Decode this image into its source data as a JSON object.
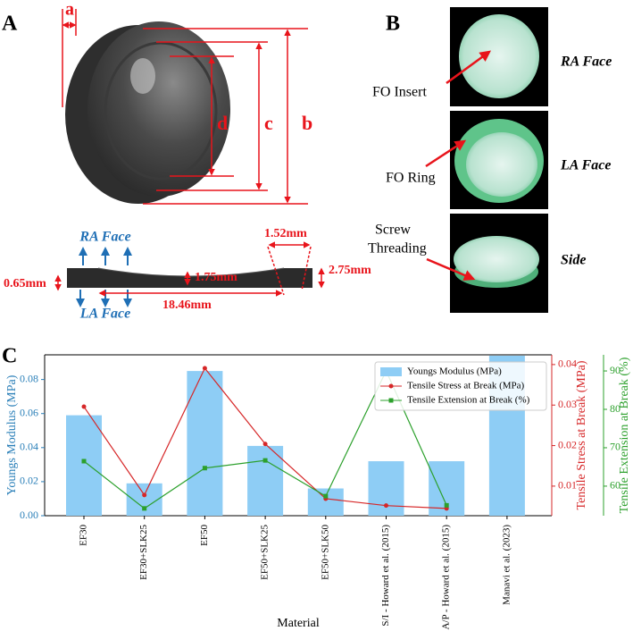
{
  "panels": {
    "a": {
      "label": "A",
      "dims": [
        "a",
        "b",
        "c",
        "d"
      ],
      "faces": [
        "RA Face",
        "LA Face"
      ],
      "measures": [
        "1.52mm",
        "2.75mm",
        "0.65mm",
        "1.75mm",
        "18.46mm"
      ]
    },
    "b": {
      "label": "B",
      "views": [
        "RA Face",
        "LA Face",
        "Side"
      ],
      "callouts": [
        "FO Insert",
        "FO Ring",
        "Screw",
        "Threading"
      ]
    },
    "c": {
      "label": "C"
    }
  },
  "chart_data": {
    "type": "bar",
    "categories": [
      "EF30",
      "EF30+SLK25",
      "EF50",
      "EF50+SLK25",
      "EF50+SLK50",
      "S/I - Howard et al. (2015)",
      "A/P - Howard et al. (2015)",
      "Manavi et al. (2023)"
    ],
    "x_label": "Material",
    "y_label": "Youngs Modulus (MPa)",
    "y2_label": "Tensile Stress at Break (MPa)",
    "y3_label": "Tensile Extension at Break (%)",
    "ylim": [
      0,
      0.0945
    ],
    "yticks": [
      {
        "value": 0,
        "label": "0.00"
      },
      0.02,
      0.04,
      0.06,
      0.08
    ],
    "y2lim": [
      0.0027,
      0.0424
    ],
    "y2ticks": [
      0.01,
      0.02,
      0.03,
      0.04
    ],
    "y3lim": [
      52.3,
      94.2
    ],
    "y3ticks": [
      60,
      70,
      80,
      90
    ],
    "legend": "upper right",
    "series": [
      {
        "name": "Youngs Modulus (MPa)",
        "color": "#8ecdf5",
        "type": "bar",
        "values": [
          0.059,
          0.019,
          0.085,
          0.041,
          0.016,
          0.032,
          0.032,
          0.094
        ]
      },
      {
        "name": "Tensile Stress at Break (MPa)",
        "color": "#d62728",
        "type": "line",
        "axis": "y2",
        "marker": "circle",
        "values": [
          0.0296,
          0.0078,
          0.0391,
          0.0204,
          0.0069,
          0.0052,
          0.0045,
          null
        ]
      },
      {
        "name": "Tensile Extension at Break (%)",
        "color": "#2ca02c",
        "type": "line",
        "axis": "y3",
        "marker": "square",
        "values": [
          66.5,
          54.2,
          64.7,
          66.7,
          57.4,
          90,
          55,
          null
        ]
      }
    ]
  }
}
